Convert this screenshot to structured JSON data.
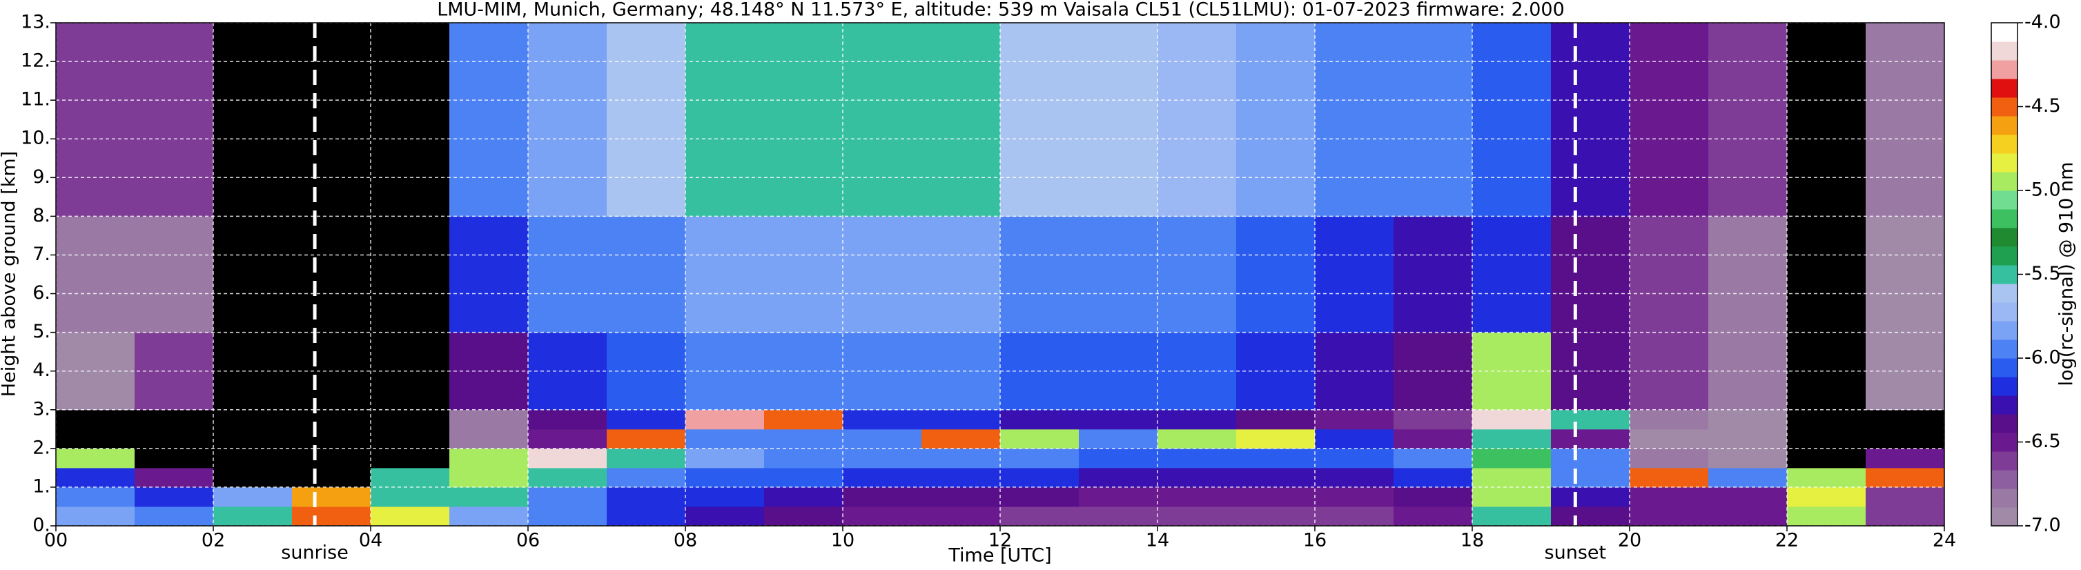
{
  "chart_data": {
    "type": "heatmap",
    "title": "LMU-MIM, Munich, Germany; 48.148° N 11.573° E, altitude: 539 m    Vaisala CL51 (CL51LMU): 01-07-2023    firmware: 2.000",
    "x_label": "Time [UTC]",
    "y_label": "Height above ground [km]",
    "colorbar_label": "log(rc-signal) @ 910 nm",
    "xlim": [
      0,
      24
    ],
    "ylim": [
      0,
      13
    ],
    "xticks": [
      {
        "value": 0,
        "label": "00"
      },
      {
        "value": 2,
        "label": "02"
      },
      {
        "value": 4,
        "label": "04"
      },
      {
        "value": 6,
        "label": "06"
      },
      {
        "value": 8,
        "label": "08"
      },
      {
        "value": 10,
        "label": "10"
      },
      {
        "value": 12,
        "label": "12"
      },
      {
        "value": 14,
        "label": "14"
      },
      {
        "value": 16,
        "label": "16"
      },
      {
        "value": 18,
        "label": "18"
      },
      {
        "value": 20,
        "label": "20"
      },
      {
        "value": 22,
        "label": "22"
      },
      {
        "value": 24,
        "label": "24"
      }
    ],
    "yticks": [
      {
        "value": 0,
        "label": "0."
      },
      {
        "value": 1,
        "label": "1."
      },
      {
        "value": 2,
        "label": "2."
      },
      {
        "value": 3,
        "label": "3."
      },
      {
        "value": 4,
        "label": "4."
      },
      {
        "value": 5,
        "label": "5."
      },
      {
        "value": 6,
        "label": "6."
      },
      {
        "value": 7,
        "label": "7."
      },
      {
        "value": 8,
        "label": "8."
      },
      {
        "value": 9,
        "label": "9."
      },
      {
        "value": 10,
        "label": "10."
      },
      {
        "value": 11,
        "label": "11."
      },
      {
        "value": 12,
        "label": "12."
      },
      {
        "value": 13,
        "label": "13."
      }
    ],
    "clim": [
      -7,
      -4
    ],
    "cticks": [
      {
        "value": -4,
        "label": "-4.0"
      },
      {
        "value": -4.5,
        "label": "-4.5"
      },
      {
        "value": -5,
        "label": "-5.0"
      },
      {
        "value": -5.5,
        "label": "-5.5"
      },
      {
        "value": -6,
        "label": "-6.0"
      },
      {
        "value": -6.5,
        "label": "-6.5"
      },
      {
        "value": -7,
        "label": "-7.0"
      }
    ],
    "colorscale": [
      "#a08aa8",
      "#9a7aa5",
      "#8e5fa0",
      "#7f3c97",
      "#6a1a8e",
      "#5a0f8a",
      "#3a10b0",
      "#1f2fe0",
      "#2a5cf0",
      "#4d82f5",
      "#7aa3f5",
      "#9bb8f5",
      "#a9c4f0",
      "#36c0a0",
      "#1fa050",
      "#208a30",
      "#3cc060",
      "#70dd90",
      "#a8ea60",
      "#e6f040",
      "#f5d020",
      "#f5a010",
      "#f06010",
      "#e01010",
      "#f0a0a0",
      "#f0d8d8",
      "#ffffff"
    ],
    "below_color": "#000000",
    "grid": true,
    "x_bins": [
      0,
      1,
      2,
      3,
      4,
      5,
      6,
      7,
      8,
      9,
      10,
      11,
      12,
      13,
      14,
      15,
      16,
      17,
      18,
      19,
      20,
      21,
      22,
      23,
      24
    ],
    "y_bins": [
      0,
      0.5,
      1,
      1.5,
      2,
      2.5,
      3,
      5,
      8,
      13
    ],
    "z": [
      [
        -5.8,
        -5.9,
        -5.5,
        -4.5,
        -4.8,
        -5.8,
        -6.0,
        -6.2,
        -6.3,
        -6.4,
        -6.5,
        -6.5,
        -6.6,
        -6.6,
        -6.6,
        -6.6,
        -6.6,
        -6.5,
        -5.5,
        -6.4,
        -6.5,
        -6.5,
        -5.0,
        -6.6
      ],
      [
        -6.0,
        -6.2,
        -5.8,
        -4.6,
        -5.5,
        -5.5,
        -6.0,
        -6.2,
        -6.2,
        -6.3,
        -6.4,
        -6.4,
        -6.4,
        -6.5,
        -6.5,
        -6.5,
        -6.5,
        -6.4,
        -5.0,
        -6.3,
        -6.5,
        -6.5,
        -4.8,
        -6.6
      ],
      [
        -6.2,
        -6.5,
        -7.2,
        -7.2,
        -5.5,
        -5.0,
        -5.5,
        -6.0,
        -6.1,
        -6.1,
        -6.2,
        -6.2,
        -6.2,
        -6.3,
        -6.3,
        -6.3,
        -6.3,
        -6.2,
        -5.0,
        -6.0,
        -4.5,
        -6.0,
        -5.0,
        -4.5
      ],
      [
        -5.0,
        -7.2,
        -7.2,
        -7.2,
        -7.2,
        -5.0,
        -4.2,
        -5.5,
        -5.8,
        -5.9,
        -5.9,
        -6.0,
        -6.0,
        -6.1,
        -6.1,
        -6.1,
        -6.1,
        -6.0,
        -5.2,
        -6.0,
        -6.8,
        -7.0,
        -7.2,
        -6.5
      ],
      [
        -7.2,
        -7.2,
        -7.2,
        -7.2,
        -7.2,
        -6.8,
        -6.5,
        -4.5,
        -6.0,
        -6.0,
        -6.0,
        -4.5,
        -5.0,
        -6.0,
        -5.0,
        -4.8,
        -6.2,
        -6.5,
        -5.5,
        -6.5,
        -7.0,
        -7.0,
        -7.2,
        -7.2
      ],
      [
        -7.2,
        -7.2,
        -7.2,
        -7.2,
        -7.2,
        -6.8,
        -6.4,
        -6.2,
        -4.3,
        -4.5,
        -6.2,
        -6.2,
        -6.3,
        -6.3,
        -6.3,
        -6.4,
        -6.5,
        -6.6,
        -4.2,
        -5.5,
        -6.8,
        -7.0,
        -7.2,
        -7.2
      ],
      [
        -7.0,
        -6.6,
        -7.2,
        -7.2,
        -7.2,
        -6.4,
        -6.2,
        -6.1,
        -6.0,
        -6.0,
        -6.0,
        -6.0,
        -6.1,
        -6.1,
        -6.1,
        -6.2,
        -6.3,
        -6.4,
        -5.0,
        -6.4,
        -6.6,
        -6.8,
        -7.2,
        -7.0
      ],
      [
        -6.8,
        -6.8,
        -7.2,
        -7.2,
        -7.2,
        -6.2,
        -6.0,
        -5.9,
        -5.8,
        -5.8,
        -5.8,
        -5.8,
        -5.9,
        -5.9,
        -6.0,
        -6.1,
        -6.2,
        -6.3,
        -6.2,
        -6.4,
        -6.6,
        -6.8,
        -7.2,
        -6.9
      ],
      [
        -6.6,
        -6.6,
        -7.2,
        -7.2,
        -7.2,
        -6.0,
        -5.8,
        -5.6,
        -5.5,
        -5.5,
        -5.5,
        -5.5,
        -5.6,
        -5.6,
        -5.7,
        -5.8,
        -5.9,
        -6.0,
        -6.1,
        -6.3,
        -6.5,
        -6.6,
        -7.2,
        -6.8
      ]
    ],
    "annotations": [
      {
        "x": 3.29,
        "text": "sunrise"
      },
      {
        "x": 19.31,
        "text": "sunset"
      }
    ]
  }
}
